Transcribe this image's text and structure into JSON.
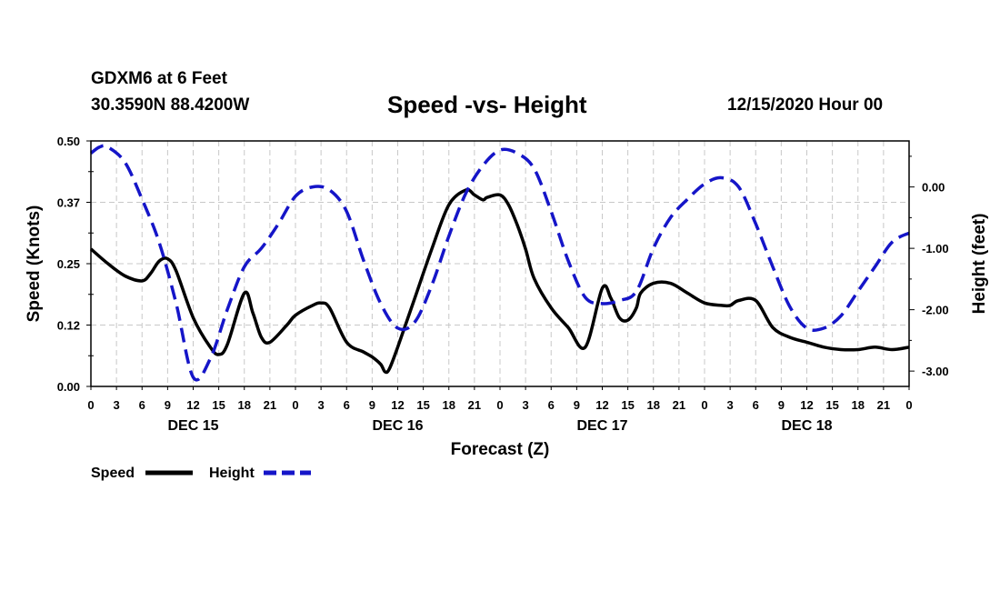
{
  "header": {
    "station": "GDXM6 at 6 Feet",
    "coords": "30.3590N 88.4200W",
    "title": "Speed -vs- Height",
    "run": "12/15/2020 Hour 00"
  },
  "chart_data": {
    "type": "line",
    "title": "Speed -vs- Height",
    "xlabel": "Forecast (Z)",
    "ylabel_left": "Speed (Knots)",
    "ylabel_right": "Height (feet)",
    "x_range_hours": [
      0,
      96
    ],
    "x_tick_step_hours": 3,
    "x_tick_labels": [
      "0",
      "3",
      "6",
      "9",
      "12",
      "15",
      "18",
      "21",
      "0",
      "3",
      "6",
      "9",
      "12",
      "15",
      "18",
      "21",
      "0",
      "3",
      "6",
      "9",
      "12",
      "15",
      "18",
      "21",
      "0",
      "3",
      "6",
      "9",
      "12",
      "15",
      "18",
      "21",
      "0"
    ],
    "day_labels": [
      {
        "label": "DEC 15",
        "hour": 12
      },
      {
        "label": "DEC 16",
        "hour": 36
      },
      {
        "label": "DEC 17",
        "hour": 60
      },
      {
        "label": "DEC 18",
        "hour": 84
      }
    ],
    "y_left": {
      "range": [
        0,
        0.5
      ],
      "ticks": [
        "0.00",
        "0.12",
        "0.25",
        "0.37",
        "0.50"
      ]
    },
    "y_right": {
      "range": [
        -3.25,
        0.75
      ],
      "ticks": [
        "-3.00",
        "-2.00",
        "-1.00",
        "0.00"
      ],
      "tick_values": [
        -3,
        -2,
        -1,
        0
      ]
    },
    "grid": true,
    "legend": [
      {
        "name": "Speed",
        "style": "solid",
        "color": "#000000"
      },
      {
        "name": "Height",
        "style": "dashed",
        "color": "#1515c8"
      }
    ],
    "series": [
      {
        "name": "Speed",
        "axis": "left",
        "color": "#000000",
        "x": [
          0,
          2,
          4,
          6,
          7,
          8,
          9,
          10,
          12,
          14,
          15,
          16,
          18,
          19,
          20,
          21,
          23,
          24,
          26,
          27,
          28,
          30,
          32,
          33,
          34,
          34.5,
          35,
          36,
          38,
          40,
          42,
          44,
          45,
          46,
          46.5,
          48,
          49,
          50,
          51,
          52,
          54,
          56,
          58,
          60,
          61,
          62,
          63,
          64,
          64.5,
          66,
          68,
          70,
          72,
          74,
          75,
          76,
          78,
          80,
          82,
          84,
          86,
          88,
          90,
          92,
          94,
          96
        ],
        "y": [
          0.28,
          0.25,
          0.225,
          0.215,
          0.23,
          0.255,
          0.26,
          0.235,
          0.14,
          0.08,
          0.065,
          0.085,
          0.19,
          0.15,
          0.1,
          0.09,
          0.125,
          0.145,
          0.165,
          0.17,
          0.16,
          0.09,
          0.07,
          0.06,
          0.045,
          0.03,
          0.035,
          0.08,
          0.18,
          0.28,
          0.37,
          0.4,
          0.39,
          0.38,
          0.385,
          0.39,
          0.37,
          0.33,
          0.28,
          0.22,
          0.16,
          0.12,
          0.08,
          0.2,
          0.18,
          0.14,
          0.135,
          0.16,
          0.19,
          0.21,
          0.21,
          0.19,
          0.17,
          0.165,
          0.165,
          0.175,
          0.175,
          0.12,
          0.1,
          0.09,
          0.08,
          0.075,
          0.075,
          0.08,
          0.075,
          0.08
        ]
      },
      {
        "name": "Height",
        "axis": "right",
        "color": "#1515c8",
        "x": [
          0,
          1,
          2,
          4,
          6,
          8,
          10,
          12,
          14,
          16,
          18,
          20,
          22,
          24,
          26,
          28,
          30,
          32,
          34,
          36,
          38,
          40,
          42,
          44,
          46,
          48,
          50,
          52,
          54,
          56,
          58,
          60,
          62,
          64,
          66,
          68,
          70,
          72,
          74,
          76,
          78,
          80,
          82,
          84,
          86,
          88,
          90,
          92,
          94,
          96
        ],
        "y": [
          0.55,
          0.65,
          0.65,
          0.4,
          -0.2,
          -0.9,
          -1.9,
          -3.1,
          -2.8,
          -2.0,
          -1.3,
          -1.0,
          -0.6,
          -0.15,
          0.0,
          -0.05,
          -0.4,
          -1.2,
          -1.9,
          -2.3,
          -2.2,
          -1.6,
          -0.8,
          -0.1,
          0.35,
          0.6,
          0.55,
          0.3,
          -0.4,
          -1.2,
          -1.8,
          -1.9,
          -1.85,
          -1.7,
          -1.0,
          -0.5,
          -0.2,
          0.05,
          0.15,
          0.0,
          -0.6,
          -1.3,
          -1.95,
          -2.3,
          -2.3,
          -2.1,
          -1.7,
          -1.3,
          -0.9,
          -0.75
        ]
      }
    ]
  }
}
